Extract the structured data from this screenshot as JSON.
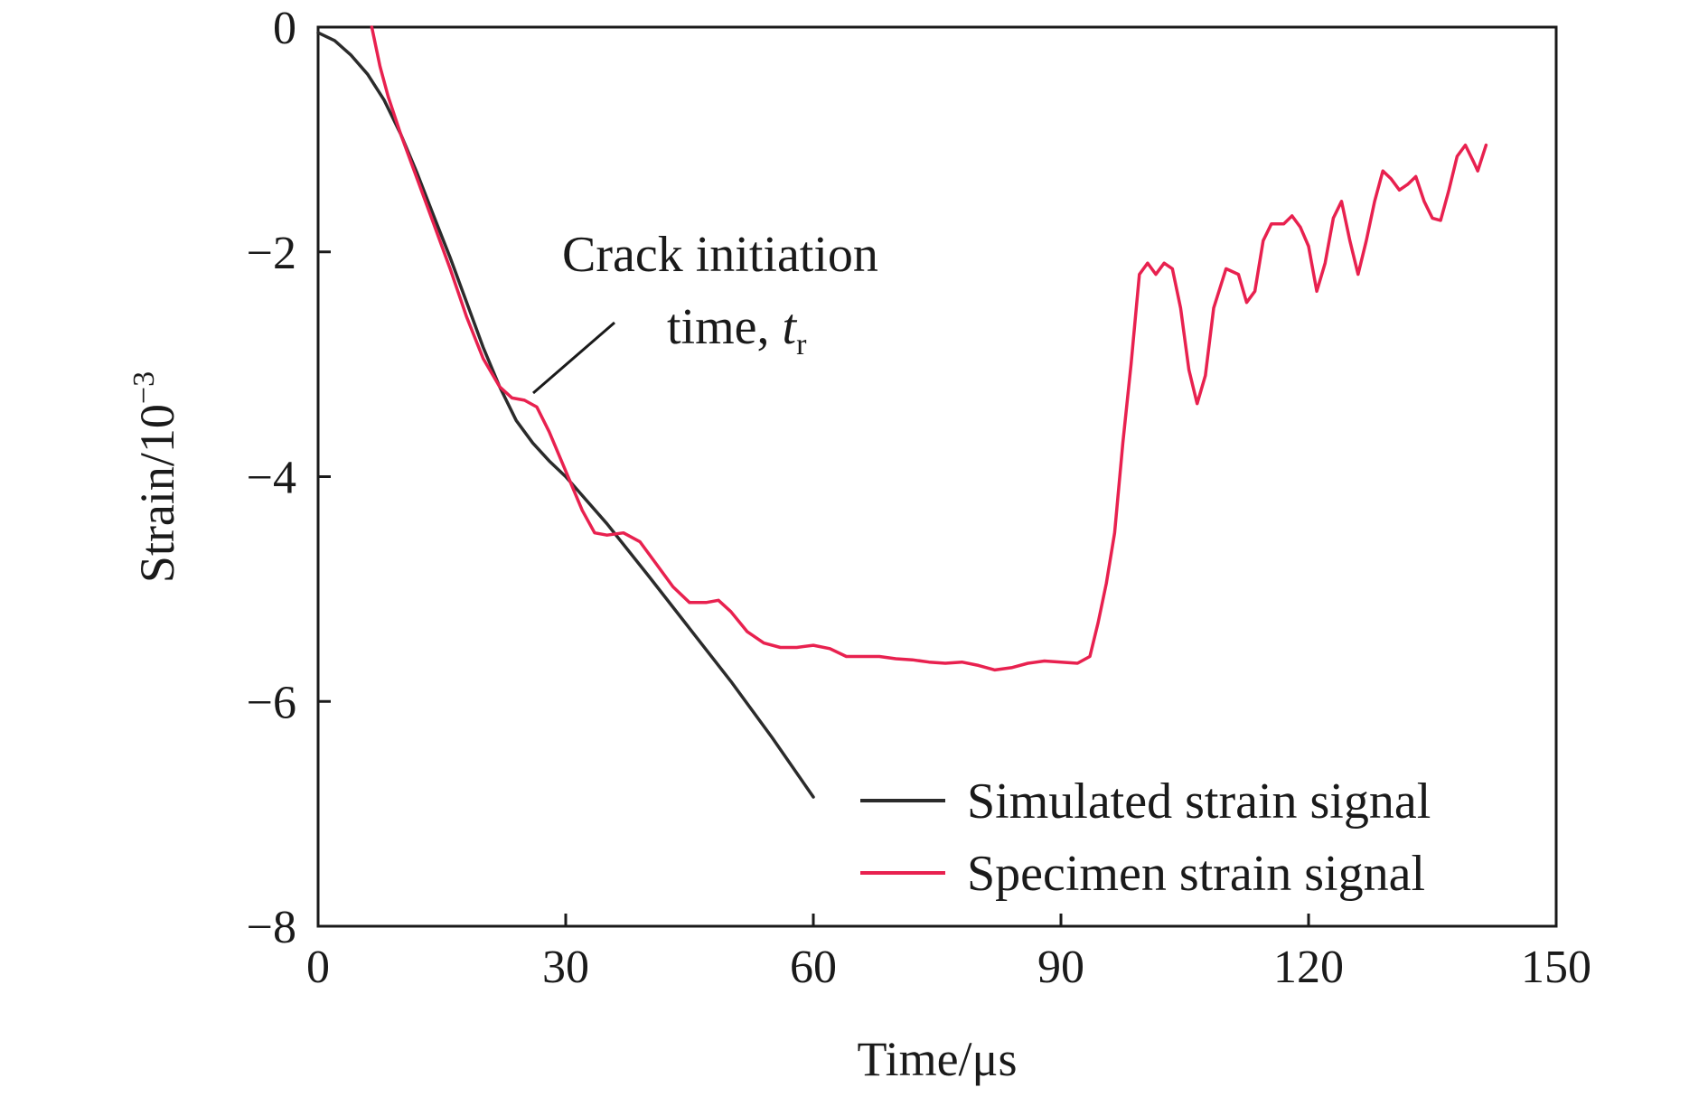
{
  "chart_data": {
    "type": "line",
    "title": "",
    "xlabel": "Time/μs",
    "ylabel": "Strain/10",
    "ylabel_exponent": "−3",
    "xlim": [
      0,
      150
    ],
    "ylim": [
      -8,
      0
    ],
    "xticks": [
      0,
      30,
      60,
      90,
      120,
      150
    ],
    "yticks": [
      0,
      -2,
      -4,
      -6,
      -8
    ],
    "xtick_labels": [
      "0",
      "30",
      "60",
      "90",
      "120",
      "150"
    ],
    "ytick_labels": [
      "0",
      "−2",
      "−4",
      "−6",
      "−8"
    ],
    "grid": false,
    "legend_position": "bottom-right",
    "annotation": {
      "line1": "Crack initiation",
      "line2": "time, ",
      "symbol": "t",
      "subscript": "r",
      "point": [
        26,
        -3.3
      ]
    },
    "series": [
      {
        "name": "Simulated strain signal",
        "color": "#2b2b2b",
        "points": [
          [
            0,
            -0.05
          ],
          [
            2,
            -0.12
          ],
          [
            4,
            -0.25
          ],
          [
            6,
            -0.42
          ],
          [
            8,
            -0.65
          ],
          [
            10,
            -0.95
          ],
          [
            12,
            -1.3
          ],
          [
            14,
            -1.68
          ],
          [
            16,
            -2.05
          ],
          [
            18,
            -2.45
          ],
          [
            20,
            -2.85
          ],
          [
            22,
            -3.2
          ],
          [
            24,
            -3.5
          ],
          [
            26,
            -3.7
          ],
          [
            28,
            -3.86
          ],
          [
            30,
            -4.0
          ],
          [
            35,
            -4.42
          ],
          [
            40,
            -4.88
          ],
          [
            45,
            -5.35
          ],
          [
            50,
            -5.82
          ],
          [
            55,
            -6.32
          ],
          [
            60,
            -6.85
          ]
        ]
      },
      {
        "name": "Specimen strain signal",
        "color": "#e8214f",
        "points": [
          [
            6.5,
            0
          ],
          [
            7.5,
            -0.35
          ],
          [
            8.5,
            -0.62
          ],
          [
            10,
            -0.95
          ],
          [
            12,
            -1.35
          ],
          [
            14,
            -1.75
          ],
          [
            16,
            -2.15
          ],
          [
            18,
            -2.58
          ],
          [
            20,
            -2.95
          ],
          [
            22,
            -3.2
          ],
          [
            23.5,
            -3.3
          ],
          [
            25,
            -3.32
          ],
          [
            26.5,
            -3.38
          ],
          [
            28,
            -3.6
          ],
          [
            30,
            -3.95
          ],
          [
            32,
            -4.3
          ],
          [
            33.5,
            -4.5
          ],
          [
            35,
            -4.52
          ],
          [
            37,
            -4.5
          ],
          [
            39,
            -4.58
          ],
          [
            41,
            -4.78
          ],
          [
            43,
            -4.98
          ],
          [
            45,
            -5.12
          ],
          [
            47,
            -5.12
          ],
          [
            48.5,
            -5.1
          ],
          [
            50,
            -5.2
          ],
          [
            52,
            -5.38
          ],
          [
            54,
            -5.48
          ],
          [
            56,
            -5.52
          ],
          [
            58,
            -5.52
          ],
          [
            60,
            -5.5
          ],
          [
            62,
            -5.53
          ],
          [
            64,
            -5.6
          ],
          [
            66,
            -5.6
          ],
          [
            68,
            -5.6
          ],
          [
            70,
            -5.62
          ],
          [
            72,
            -5.63
          ],
          [
            74,
            -5.65
          ],
          [
            76,
            -5.66
          ],
          [
            78,
            -5.65
          ],
          [
            80,
            -5.68
          ],
          [
            82,
            -5.72
          ],
          [
            84,
            -5.7
          ],
          [
            86,
            -5.66
          ],
          [
            88,
            -5.64
          ],
          [
            90,
            -5.65
          ],
          [
            92,
            -5.66
          ],
          [
            93.5,
            -5.6
          ],
          [
            94.5,
            -5.3
          ],
          [
            95.5,
            -4.95
          ],
          [
            96.5,
            -4.5
          ],
          [
            97.5,
            -3.7
          ],
          [
            98.5,
            -3.0
          ],
          [
            99.5,
            -2.2
          ],
          [
            100.5,
            -2.1
          ],
          [
            101.5,
            -2.2
          ],
          [
            102.5,
            -2.1
          ],
          [
            103.5,
            -2.15
          ],
          [
            104.5,
            -2.5
          ],
          [
            105.5,
            -3.05
          ],
          [
            106.5,
            -3.35
          ],
          [
            107.5,
            -3.1
          ],
          [
            108.5,
            -2.5
          ],
          [
            110,
            -2.15
          ],
          [
            111.5,
            -2.2
          ],
          [
            112.5,
            -2.45
          ],
          [
            113.5,
            -2.35
          ],
          [
            114.5,
            -1.9
          ],
          [
            115.5,
            -1.75
          ],
          [
            117,
            -1.75
          ],
          [
            118,
            -1.68
          ],
          [
            119,
            -1.78
          ],
          [
            120,
            -1.95
          ],
          [
            121,
            -2.35
          ],
          [
            122,
            -2.1
          ],
          [
            123,
            -1.7
          ],
          [
            124,
            -1.55
          ],
          [
            125,
            -1.9
          ],
          [
            126,
            -2.2
          ],
          [
            127,
            -1.9
          ],
          [
            128,
            -1.55
          ],
          [
            129,
            -1.28
          ],
          [
            130,
            -1.35
          ],
          [
            131,
            -1.45
          ],
          [
            132,
            -1.4
          ],
          [
            133,
            -1.33
          ],
          [
            134,
            -1.55
          ],
          [
            135,
            -1.7
          ],
          [
            136,
            -1.72
          ],
          [
            137,
            -1.45
          ],
          [
            138,
            -1.15
          ],
          [
            139,
            -1.05
          ],
          [
            140,
            -1.2
          ],
          [
            140.5,
            -1.28
          ],
          [
            141.5,
            -1.05
          ]
        ]
      }
    ]
  }
}
